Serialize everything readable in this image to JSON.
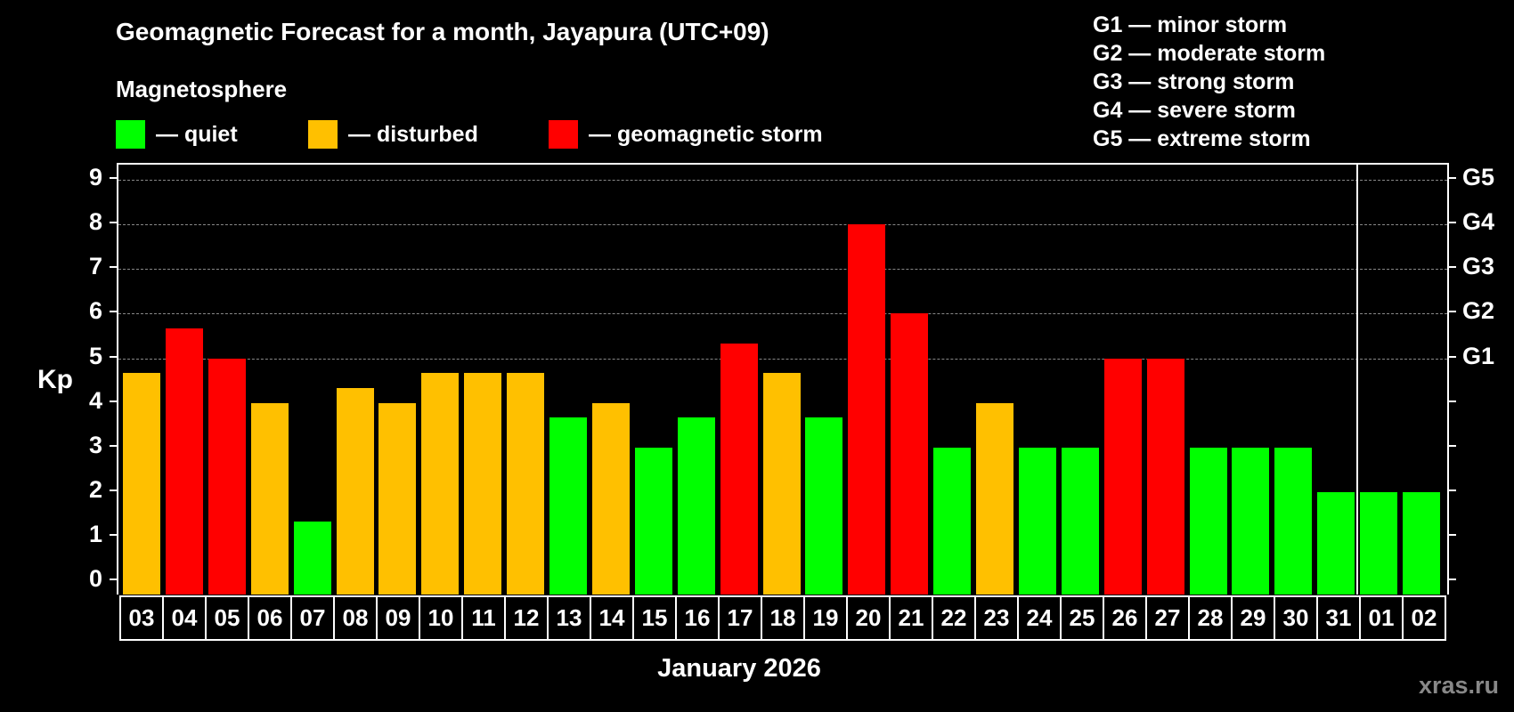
{
  "header": {
    "title": "Geomagnetic Forecast for a month, Jayapura (UTC+09)",
    "legend_title": "Magnetosphere"
  },
  "legend": [
    {
      "label": "— quiet",
      "color": "#00ff00"
    },
    {
      "label": "— disturbed",
      "color": "#ffc000"
    },
    {
      "label": "— geomagnetic storm",
      "color": "#ff0000"
    }
  ],
  "g_scale": [
    {
      "label": "G1 — minor storm"
    },
    {
      "label": "G2 — moderate storm"
    },
    {
      "label": "G3 — strong storm"
    },
    {
      "label": "G4 — severe storm"
    },
    {
      "label": "G5 — extreme storm"
    }
  ],
  "axes": {
    "ylabel": "Kp",
    "xlabel": "January 2026",
    "yticks": [
      "0",
      "1",
      "2",
      "3",
      "4",
      "5",
      "6",
      "7",
      "8",
      "9"
    ],
    "right_ticks": [
      {
        "kp": 5,
        "label": "G1"
      },
      {
        "kp": 6,
        "label": "G2"
      },
      {
        "kp": 7,
        "label": "G3"
      },
      {
        "kp": 8,
        "label": "G4"
      },
      {
        "kp": 9,
        "label": "G5"
      }
    ]
  },
  "watermark": "xras.ru",
  "chart_data": {
    "type": "bar",
    "title": "Geomagnetic Forecast for a month, Jayapura (UTC+09)",
    "xlabel": "January 2026",
    "ylabel": "Kp",
    "ylim": [
      0,
      9
    ],
    "grid": "horizontal dashed at Kp 5-9",
    "legend": [
      "quiet",
      "disturbed",
      "geomagnetic storm"
    ],
    "categories": [
      "03",
      "04",
      "05",
      "06",
      "07",
      "08",
      "09",
      "10",
      "11",
      "12",
      "13",
      "14",
      "15",
      "16",
      "17",
      "18",
      "19",
      "20",
      "21",
      "22",
      "23",
      "24",
      "25",
      "26",
      "27",
      "28",
      "29",
      "30",
      "31",
      "01",
      "02"
    ],
    "values": [
      4.67,
      5.67,
      5.0,
      4.0,
      1.33,
      4.33,
      4.0,
      4.67,
      4.67,
      4.67,
      3.67,
      4.0,
      3.0,
      3.67,
      5.33,
      4.67,
      3.67,
      8.0,
      6.0,
      3.0,
      4.0,
      3.0,
      3.0,
      5.0,
      5.0,
      3.0,
      3.0,
      3.0,
      2.0,
      2.0,
      2.0
    ],
    "status": [
      "disturbed",
      "storm",
      "storm",
      "disturbed",
      "quiet",
      "disturbed",
      "disturbed",
      "disturbed",
      "disturbed",
      "disturbed",
      "quiet",
      "disturbed",
      "quiet",
      "quiet",
      "storm",
      "disturbed",
      "quiet",
      "storm",
      "storm",
      "quiet",
      "disturbed",
      "quiet",
      "quiet",
      "storm",
      "storm",
      "quiet",
      "quiet",
      "quiet",
      "quiet",
      "quiet",
      "quiet"
    ],
    "month_divider_after": "31"
  }
}
